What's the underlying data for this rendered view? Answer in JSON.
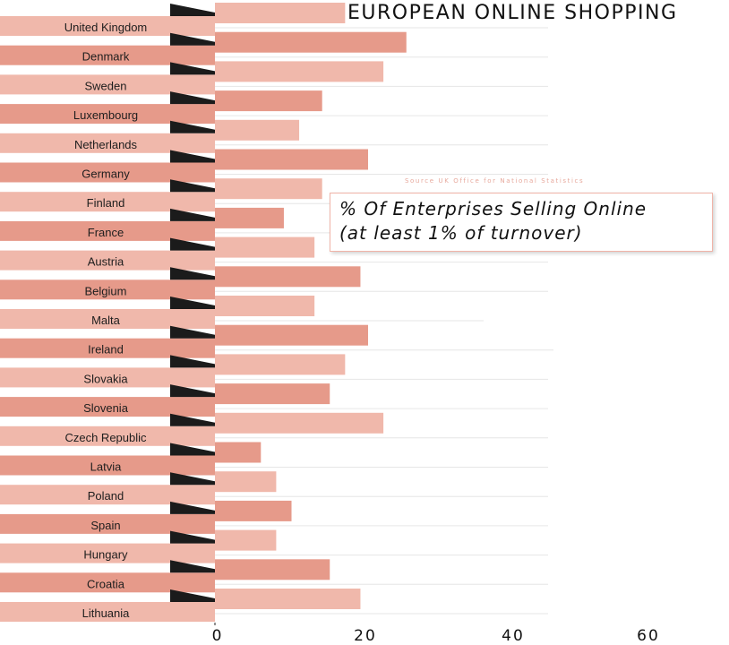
{
  "title": "EUROPEAN ONLINE SHOPPING",
  "source": "Source   UK Office for National Statistics",
  "subtitle": [
    "% Of Enterprises Selling Online",
    "(at least 1% of turnover)"
  ],
  "colors": {
    "light": "#f0b8ab",
    "dark": "#e69a8a",
    "flag": "#1b1b1b",
    "grid": "#e6e6e6",
    "axis": "#222222"
  },
  "chart_data": {
    "type": "bar",
    "orientation": "horizontal",
    "title": "EUROPEAN ONLINE SHOPPING",
    "subtitle": "% Of Enterprises Selling Online (at least 1% of turnover)",
    "categories": [
      "United Kingdom",
      "Denmark",
      "Sweden",
      "Luxembourg",
      "Netherlands",
      "Germany",
      "Finland",
      "France",
      "Austria",
      "Belgium",
      "Malta",
      "Ireland",
      "Slovakia",
      "Slovenia",
      "Czech Republic",
      "Latvia",
      "Poland",
      "Spain",
      "Hungary",
      "Croatia",
      "Lithuania"
    ],
    "values": [
      17,
      25,
      22,
      14,
      11,
      20,
      14,
      9,
      13,
      19,
      13,
      20,
      17,
      15,
      22,
      6,
      8,
      10,
      8,
      15,
      19
    ],
    "xticks": [
      0,
      20,
      40,
      60
    ],
    "xlim": [
      0,
      60
    ],
    "grid": true,
    "source": "Source   UK Office for National Statistics"
  }
}
